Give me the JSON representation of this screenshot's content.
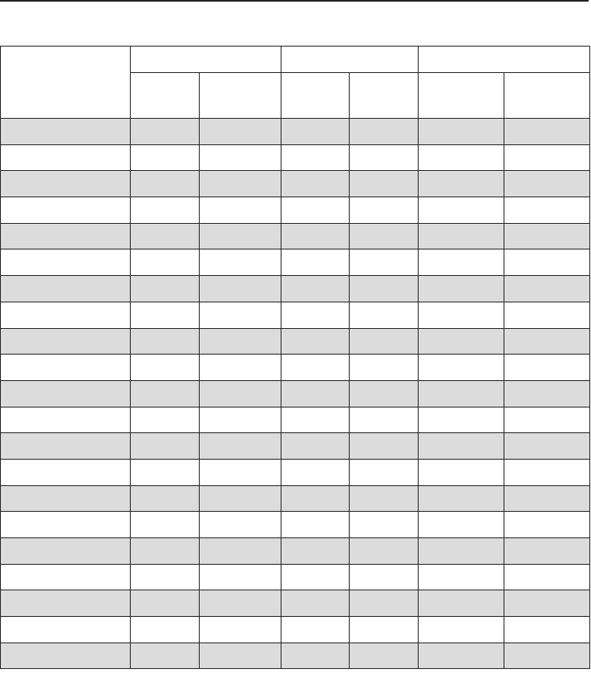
{
  "colors": {
    "shaded_row": "#dcdcdc",
    "border": "#231f20"
  },
  "table": {
    "header_row1": [
      "",
      "",
      "",
      ""
    ],
    "header_row2": [
      "",
      "",
      "",
      "",
      "",
      ""
    ],
    "rows": [
      [
        "",
        "",
        "",
        "",
        "",
        "",
        ""
      ],
      [
        "",
        "",
        "",
        "",
        "",
        "",
        ""
      ],
      [
        "",
        "",
        "",
        "",
        "",
        "",
        ""
      ],
      [
        "",
        "",
        "",
        "",
        "",
        "",
        ""
      ],
      [
        "",
        "",
        "",
        "",
        "",
        "",
        ""
      ],
      [
        "",
        "",
        "",
        "",
        "",
        "",
        ""
      ],
      [
        "",
        "",
        "",
        "",
        "",
        "",
        ""
      ],
      [
        "",
        "",
        "",
        "",
        "",
        "",
        ""
      ],
      [
        "",
        "",
        "",
        "",
        "",
        "",
        ""
      ],
      [
        "",
        "",
        "",
        "",
        "",
        "",
        ""
      ],
      [
        "",
        "",
        "",
        "",
        "",
        "",
        ""
      ],
      [
        "",
        "",
        "",
        "",
        "",
        "",
        ""
      ],
      [
        "",
        "",
        "",
        "",
        "",
        "",
        ""
      ],
      [
        "",
        "",
        "",
        "",
        "",
        "",
        ""
      ],
      [
        "",
        "",
        "",
        "",
        "",
        "",
        ""
      ],
      [
        "",
        "",
        "",
        "",
        "",
        "",
        ""
      ],
      [
        "",
        "",
        "",
        "",
        "",
        "",
        ""
      ],
      [
        "",
        "",
        "",
        "",
        "",
        "",
        ""
      ],
      [
        "",
        "",
        "",
        "",
        "",
        "",
        ""
      ],
      [
        "",
        "",
        "",
        "",
        "",
        "",
        ""
      ],
      [
        "",
        "",
        "",
        "",
        "",
        "",
        ""
      ]
    ]
  }
}
